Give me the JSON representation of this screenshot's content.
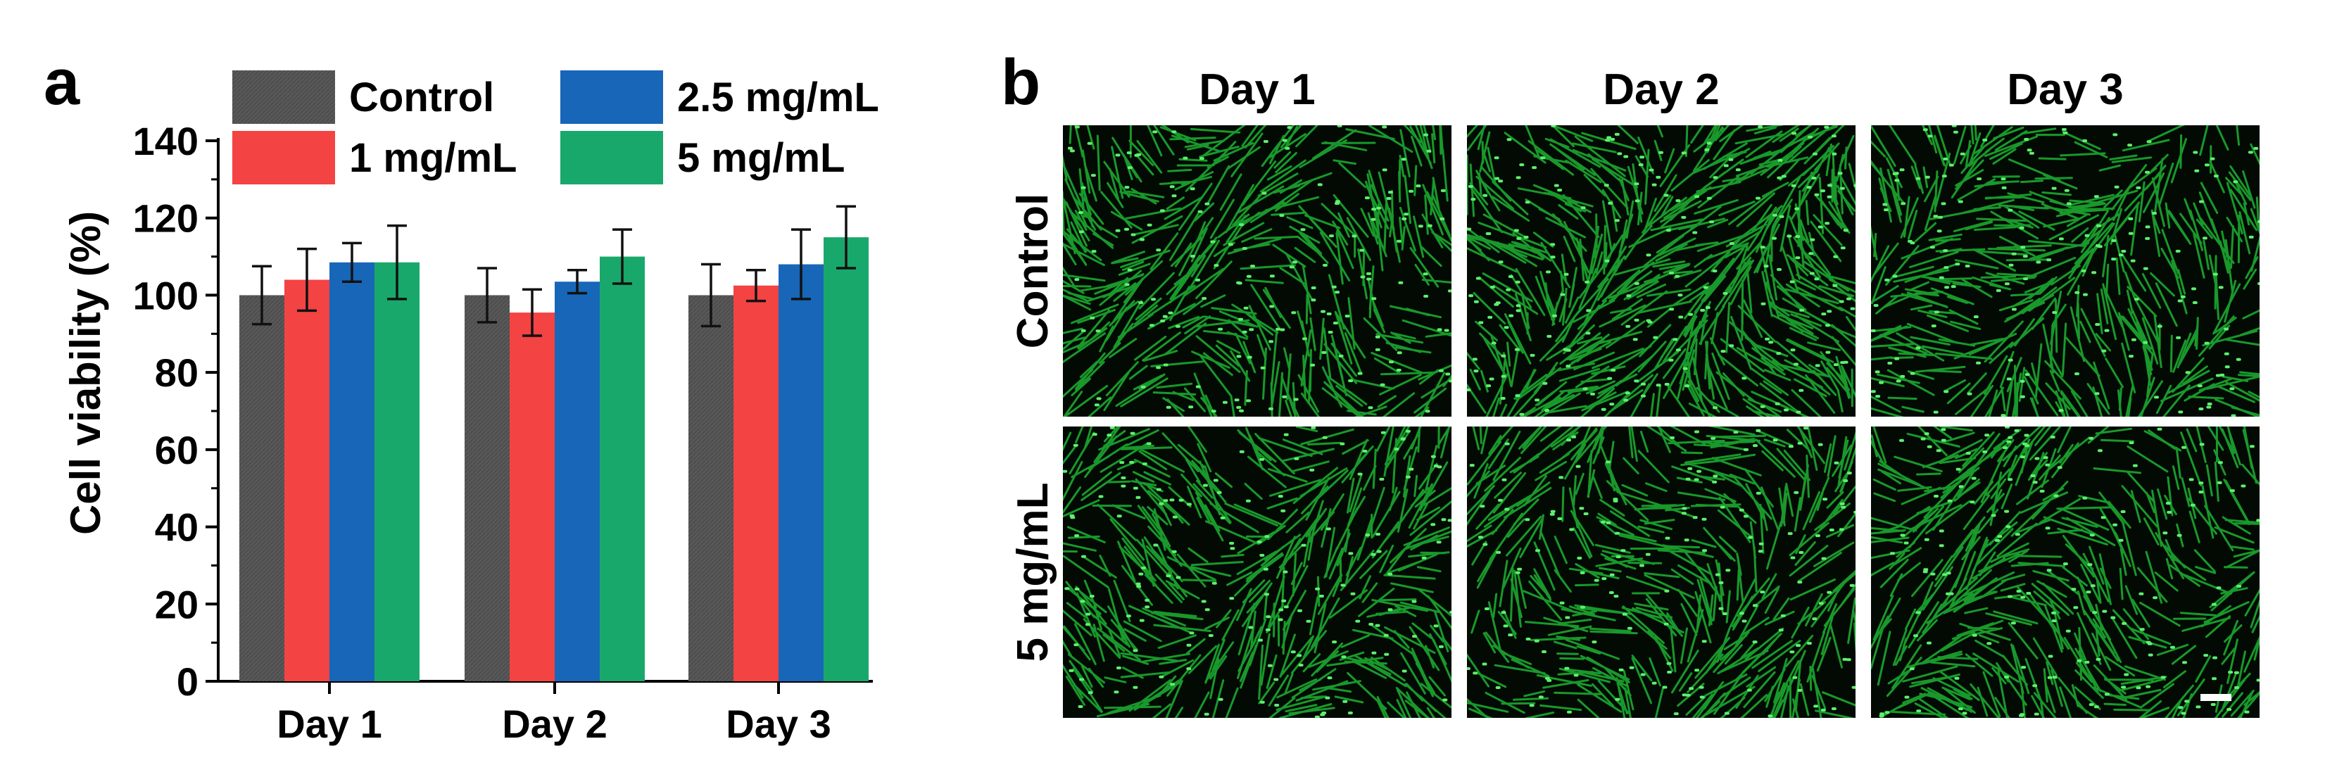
{
  "panels": {
    "a": {
      "label": "a"
    },
    "b": {
      "label": "b",
      "columns": [
        "Day 1",
        "Day 2",
        "Day 3"
      ],
      "rows": [
        "Control",
        "5 mg/mL"
      ],
      "image_tint": "#22c83a",
      "image_background": "#020a03"
    }
  },
  "chart_data": {
    "type": "bar",
    "title": "",
    "xlabel": "",
    "ylabel": "Cell viability (%)",
    "ylim": [
      0,
      140
    ],
    "yticks": [
      0,
      20,
      40,
      60,
      80,
      100,
      120,
      140
    ],
    "categories": [
      "Day 1",
      "Day 2",
      "Day 3"
    ],
    "legend_position": "top",
    "series": [
      {
        "name": "Control",
        "color": "#545454",
        "values": [
          100,
          100,
          100
        ],
        "errors": [
          7.5,
          7,
          8
        ]
      },
      {
        "name": "1 mg/mL",
        "color": "#f34343",
        "values": [
          104,
          95.5,
          102.5
        ],
        "errors": [
          8,
          6,
          4
        ]
      },
      {
        "name": "2.5 mg/mL",
        "color": "#1866b8",
        "values": [
          108.5,
          103.5,
          108
        ],
        "errors": [
          5,
          3,
          9
        ]
      },
      {
        "name": "5 mg/mL",
        "color": "#19a86b",
        "values": [
          108.5,
          110,
          115
        ],
        "errors": [
          9.5,
          7,
          8
        ]
      }
    ]
  }
}
